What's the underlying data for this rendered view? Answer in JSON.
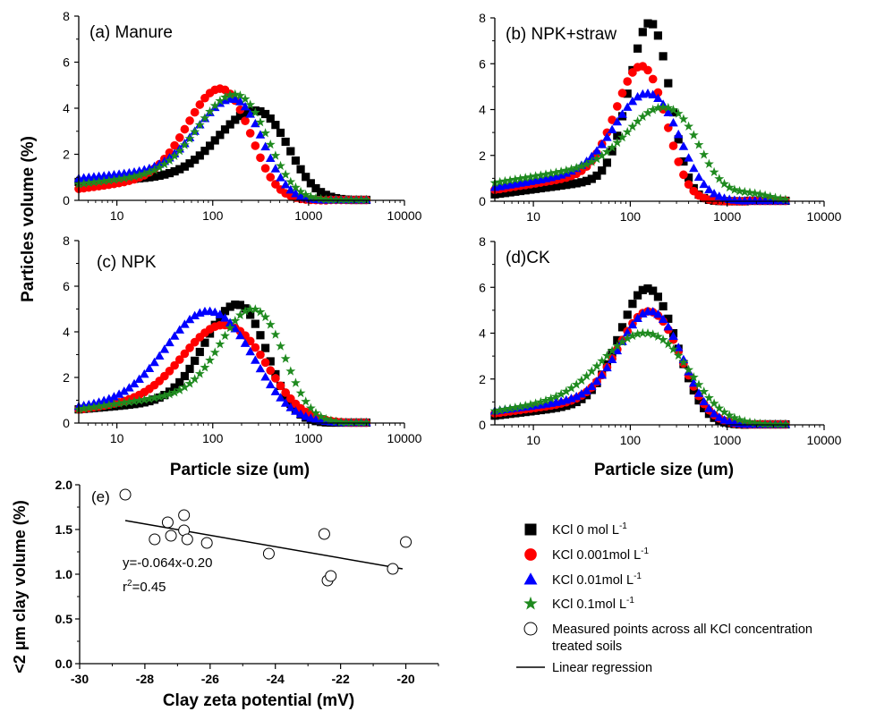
{
  "figure": {
    "ylabel_top": "Particles volume  (%)",
    "xlabel_left": "Particle size (um)",
    "xlabel_right": "Particle size (um)"
  },
  "colors": {
    "kcl0": "#000000",
    "kcl0001": "#ff0000",
    "kcl001": "#0000ff",
    "kcl01": "#1f8a1f"
  },
  "legend": {
    "items": [
      {
        "key": "kcl0",
        "text": "KCl 0 mol L",
        "sup": "-1",
        "marker": "square",
        "color": "#000000"
      },
      {
        "key": "kcl0001",
        "text": "KCl 0.001mol L",
        "sup": "-1",
        "marker": "circle",
        "color": "#ff0000"
      },
      {
        "key": "kcl001",
        "text": "KCl 0.01mol L",
        "sup": "-1",
        "marker": "triangle",
        "color": "#0000ff"
      },
      {
        "key": "kcl01",
        "text": "KCl 0.1mol L",
        "sup": "-1",
        "marker": "star",
        "color": "#1f8a1f"
      },
      {
        "key": "meas",
        "text": "Measured points across all KCl concentration",
        "text2": "treated soils",
        "marker": "open-circle",
        "color": "#000000"
      },
      {
        "key": "lin",
        "text": "Linear regression",
        "marker": "line",
        "color": "#000000"
      }
    ]
  },
  "chart_data": [
    {
      "type": "scatter",
      "title": "(a) Manure",
      "xscale": "log",
      "xlim": [
        4,
        10000
      ],
      "ylim": [
        0,
        8
      ],
      "yticks": [
        0,
        2,
        4,
        6,
        8
      ],
      "xticks": [
        10,
        100,
        1000,
        10000
      ],
      "xticklabels": [
        "10",
        "100",
        "1000",
        "10000"
      ],
      "series": [
        {
          "name": "KCl 0 mol L-1",
          "marker": "square",
          "color": "#000000",
          "peak_x": 280,
          "peak_y": 3.9,
          "sigma": 0.33,
          "skew": 0.15,
          "base0": 0.8,
          "baseEnd": 1.2,
          "shoulder_y": 0,
          "shoulder_x": 30,
          "shoulder_w": 0.4
        },
        {
          "name": "KCl 0.001mol L-1",
          "marker": "circle",
          "color": "#ff0000",
          "peak_x": 120,
          "peak_y": 4.85,
          "sigma": 0.3,
          "skew": 0.1,
          "base0": 0.5,
          "baseEnd": 1.3,
          "shoulder_y": 0,
          "shoulder_x": 30,
          "shoulder_w": 0.4
        },
        {
          "name": "KCl 0.01mol L-1",
          "marker": "triangle",
          "color": "#0000ff",
          "peak_x": 160,
          "peak_y": 4.4,
          "sigma": 0.3,
          "skew": 0.15,
          "base0": 0.95,
          "baseEnd": 1.6,
          "shoulder_y": 0,
          "shoulder_x": 30,
          "shoulder_w": 0.4
        },
        {
          "name": "KCl 0.1mol L-1",
          "marker": "star",
          "color": "#1f8a1f",
          "peak_x": 170,
          "peak_y": 4.6,
          "sigma": 0.32,
          "skew": 0.12,
          "base0": 0.7,
          "baseEnd": 1.5,
          "shoulder_y": 0,
          "shoulder_x": 30,
          "shoulder_w": 0.4
        }
      ]
    },
    {
      "type": "scatter",
      "title": "(b) NPK+straw",
      "xscale": "log",
      "xlim": [
        4,
        10000
      ],
      "ylim": [
        0,
        8
      ],
      "yticks": [
        0,
        2,
        4,
        6,
        8
      ],
      "xticks": [
        10,
        100,
        1000,
        10000
      ],
      "xticklabels": [
        "10",
        "100",
        "1000",
        "10000"
      ],
      "series": [
        {
          "name": "KCl 0 mol L-1",
          "marker": "square",
          "color": "#000000",
          "peak_x": 160,
          "peak_y": 7.8,
          "sigma": 0.2,
          "skew": 0.05,
          "base0": 0.3,
          "baseEnd": 1.2,
          "shoulder_y": 0,
          "shoulder_x": 30,
          "shoulder_w": 0.4
        },
        {
          "name": "KCl 0.001mol L-1",
          "marker": "circle",
          "color": "#ff0000",
          "peak_x": 130,
          "peak_y": 5.9,
          "sigma": 0.24,
          "skew": 0.05,
          "base0": 0.5,
          "baseEnd": 1.5,
          "shoulder_y": 0,
          "shoulder_x": 30,
          "shoulder_w": 0.4
        },
        {
          "name": "KCl 0.01mol L-1",
          "marker": "triangle",
          "color": "#0000ff",
          "peak_x": 150,
          "peak_y": 4.7,
          "sigma": 0.3,
          "skew": 0.05,
          "base0": 0.6,
          "baseEnd": 1.7,
          "shoulder_y": 0,
          "shoulder_x": 30,
          "shoulder_w": 0.4
        },
        {
          "name": "KCl 0.1mol L-1",
          "marker": "star",
          "color": "#1f8a1f",
          "peak_x": 220,
          "peak_y": 4.1,
          "sigma": 0.32,
          "skew": 0.05,
          "base0": 0.8,
          "baseEnd": 2.0,
          "shoulder_y": 0.3,
          "shoulder_x": 1800,
          "shoulder_w": 0.2
        }
      ]
    },
    {
      "type": "scatter",
      "title": "(c) NPK",
      "xscale": "log",
      "xlim": [
        4,
        10000
      ],
      "ylim": [
        0,
        8
      ],
      "yticks": [
        0,
        2,
        4,
        6,
        8
      ],
      "xticks": [
        10,
        100,
        1000,
        10000
      ],
      "xticklabels": [
        "10",
        "100",
        "1000",
        "10000"
      ],
      "series": [
        {
          "name": "KCl 0 mol L-1",
          "marker": "square",
          "color": "#000000",
          "peak_x": 180,
          "peak_y": 5.2,
          "sigma": 0.3,
          "skew": 0.1,
          "base0": 0.6,
          "baseEnd": 1.2,
          "shoulder_y": 0,
          "shoulder_x": 30,
          "shoulder_w": 0.4
        },
        {
          "name": "KCl 0.001mol L-1",
          "marker": "circle",
          "color": "#ff0000",
          "peak_x": 130,
          "peak_y": 4.3,
          "sigma": 0.4,
          "skew": 0.0,
          "base0": 0.6,
          "baseEnd": 1.4,
          "shoulder_y": 0,
          "shoulder_x": 30,
          "shoulder_w": 0.4
        },
        {
          "name": "KCl 0.01mol L-1",
          "marker": "triangle",
          "color": "#0000ff",
          "peak_x": 90,
          "peak_y": 4.9,
          "sigma": 0.42,
          "skew": 0.0,
          "base0": 0.7,
          "baseEnd": 1.4,
          "shoulder_y": 0,
          "shoulder_x": 30,
          "shoulder_w": 0.4
        },
        {
          "name": "KCl 0.1mol L-1",
          "marker": "star",
          "color": "#1f8a1f",
          "peak_x": 260,
          "peak_y": 5.0,
          "sigma": 0.3,
          "skew": 0.05,
          "base0": 0.6,
          "baseEnd": 1.7,
          "shoulder_y": 0,
          "shoulder_x": 30,
          "shoulder_w": 0.4
        }
      ]
    },
    {
      "type": "scatter",
      "title": "(d)CK",
      "xscale": "log",
      "xlim": [
        4,
        10000
      ],
      "ylim": [
        0,
        8
      ],
      "yticks": [
        0,
        2,
        4,
        6,
        8
      ],
      "xticks": [
        10,
        100,
        1000,
        10000
      ],
      "xticklabels": [
        "10",
        "100",
        "1000",
        "10000"
      ],
      "series": [
        {
          "name": "KCl 0 mol L-1",
          "marker": "square",
          "color": "#000000",
          "peak_x": 150,
          "peak_y": 5.95,
          "sigma": 0.28,
          "skew": 0.0,
          "base0": 0.4,
          "baseEnd": 1.2,
          "shoulder_y": 0,
          "shoulder_x": 30,
          "shoulder_w": 0.4
        },
        {
          "name": "KCl 0.001mol L-1",
          "marker": "circle",
          "color": "#ff0000",
          "peak_x": 155,
          "peak_y": 4.95,
          "sigma": 0.3,
          "skew": 0.0,
          "base0": 0.5,
          "baseEnd": 1.4,
          "shoulder_y": 0,
          "shoulder_x": 30,
          "shoulder_w": 0.4
        },
        {
          "name": "KCl 0.01mol L-1",
          "marker": "triangle",
          "color": "#0000ff",
          "peak_x": 160,
          "peak_y": 4.95,
          "sigma": 0.3,
          "skew": 0.0,
          "base0": 0.6,
          "baseEnd": 1.5,
          "shoulder_y": 0,
          "shoulder_x": 30,
          "shoulder_w": 0.4
        },
        {
          "name": "KCl 0.1mol L-1",
          "marker": "star",
          "color": "#1f8a1f",
          "peak_x": 140,
          "peak_y": 4.0,
          "sigma": 0.4,
          "skew": 0.0,
          "base0": 0.6,
          "baseEnd": 1.6,
          "shoulder_y": 0,
          "shoulder_x": 30,
          "shoulder_w": 0.4
        }
      ]
    },
    {
      "type": "scatter",
      "title": "(e)",
      "xlabel": "Clay zeta potential (mV)",
      "ylabel": "<2 μm clay volume  (%)",
      "xlim": [
        -30,
        -19
      ],
      "ylim": [
        0,
        2
      ],
      "xticks": [
        -30,
        -28,
        -26,
        -24,
        -22,
        -20
      ],
      "xticklabels": [
        "-30",
        "-28",
        "-26",
        "-24",
        "-22",
        "-20"
      ],
      "yticks": [
        0.0,
        0.5,
        1.0,
        1.5,
        2.0
      ],
      "yticklabels": [
        "0.0",
        "0.5",
        "1.0",
        "1.5",
        "2.0"
      ],
      "points": [
        {
          "x": -28.6,
          "y": 1.89
        },
        {
          "x": -27.3,
          "y": 1.58
        },
        {
          "x": -27.7,
          "y": 1.39
        },
        {
          "x": -27.2,
          "y": 1.43
        },
        {
          "x": -26.8,
          "y": 1.49
        },
        {
          "x": -26.8,
          "y": 1.66
        },
        {
          "x": -26.7,
          "y": 1.39
        },
        {
          "x": -26.1,
          "y": 1.35
        },
        {
          "x": -24.2,
          "y": 1.23
        },
        {
          "x": -22.5,
          "y": 1.45
        },
        {
          "x": -22.4,
          "y": 0.93
        },
        {
          "x": -22.3,
          "y": 0.98
        },
        {
          "x": -20.4,
          "y": 1.06
        },
        {
          "x": -20.0,
          "y": 1.36
        }
      ],
      "regression": {
        "x": [
          -28.6,
          -20.1
        ],
        "y": [
          1.6,
          1.06
        ]
      },
      "equation": "y=-0.064x-0.20",
      "r2_prefix": "r",
      "r2_sup": "2",
      "r2_suffix": "=0.45"
    }
  ]
}
